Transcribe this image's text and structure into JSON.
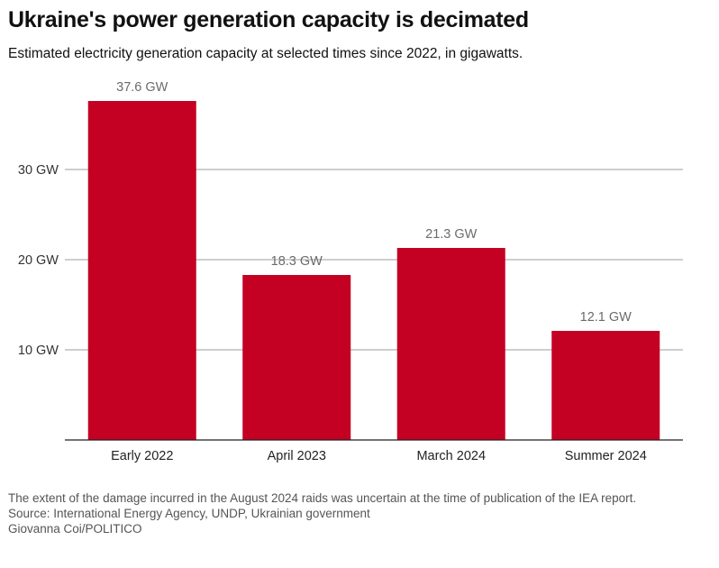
{
  "header": {
    "title": "Ukraine's power generation capacity is decimated",
    "subtitle": "Estimated electricity generation capacity at selected times since 2022, in gigawatts."
  },
  "footer": {
    "note": "The extent of the damage incurred in the August 2024 raids was uncertain at the time of publication of the IEA report.",
    "source": "Source: International Energy Agency, UNDP, Ukrainian government",
    "credit": "Giovanna Coi/POLITICO"
  },
  "chart_data": {
    "type": "bar",
    "title": "Ukraine's power generation capacity is decimated",
    "subtitle": "Estimated electricity generation capacity at selected times since 2022, in gigawatts.",
    "categories": [
      "Early 2022",
      "April 2023",
      "March 2024",
      "Summer 2024"
    ],
    "values": [
      37.6,
      18.3,
      21.3,
      12.1
    ],
    "data_labels": [
      "37.6 GW",
      "18.3 GW",
      "21.3 GW",
      "12.1 GW"
    ],
    "yticks": [
      10,
      20,
      30
    ],
    "ytick_labels": [
      "10 GW",
      "20 GW",
      "30 GW"
    ],
    "ylim": [
      0,
      40
    ],
    "xlabel": "",
    "ylabel": "",
    "grid": true,
    "colors": {
      "bar": "#c40023",
      "grid": "#9e9e9e",
      "axis": "#222222",
      "data_label": "#6b6b6b"
    }
  }
}
